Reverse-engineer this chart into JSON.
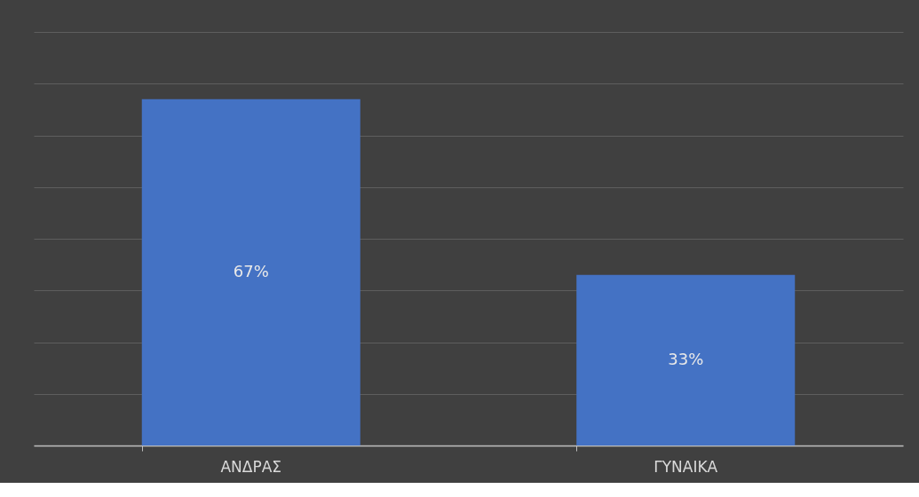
{
  "chart_data": {
    "type": "bar",
    "categories": [
      "ΑΝΔΡΑΣ",
      "ΓΥΝΑΙΚΑ"
    ],
    "values": [
      67,
      33
    ],
    "value_labels": [
      "67%",
      "33%"
    ],
    "color": "#4472c4",
    "relative": false,
    "ylim": [
      0,
      80
    ],
    "yticks": [
      {
        "value": 0,
        "label": null
      },
      {
        "value": 10,
        "label": null
      },
      {
        "value": 20,
        "label": null
      },
      {
        "value": 30,
        "label": null
      },
      {
        "value": 40,
        "label": null
      },
      {
        "value": 50,
        "label": null
      },
      {
        "value": 60,
        "label": null
      },
      {
        "value": 70,
        "label": null
      },
      {
        "value": 80,
        "label": null
      }
    ],
    "tick_labels": "x",
    "grid": "y"
  }
}
